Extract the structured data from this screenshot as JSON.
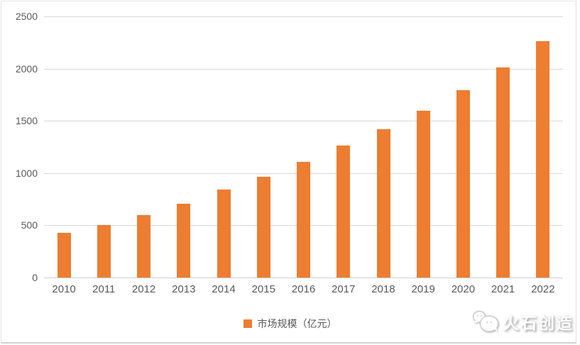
{
  "chart_data": {
    "type": "bar",
    "title": "",
    "categories": [
      "2010",
      "2011",
      "2012",
      "2013",
      "2014",
      "2015",
      "2016",
      "2017",
      "2018",
      "2019",
      "2020",
      "2021",
      "2022"
    ],
    "series": [
      {
        "name": "市场规模（亿元）",
        "color": "#ED7D31",
        "values": [
          430,
          500,
          600,
          710,
          845,
          965,
          1110,
          1265,
          1420,
          1600,
          1795,
          2010,
          2265
        ]
      }
    ],
    "xlabel": "",
    "ylabel": "",
    "ylim": [
      0,
      2500
    ],
    "yticks": [
      0,
      500,
      1000,
      1500,
      2000,
      2500
    ],
    "grid": true,
    "legend_position": "bottom-center",
    "legend_swatch": "square"
  },
  "branding": {
    "name": "火石创造",
    "icon": "huoshi-stones-icon"
  },
  "colors": {
    "bar": "#ED7D31",
    "gridline": "#D9D9D9",
    "axis_line": "#CFCFCF",
    "tick_text": "#595959",
    "frame_border": "#DEDEDE",
    "background": "#FFFFFF",
    "watermark_text": "#FFFFFF",
    "watermark_shadow": "#9E9E9E"
  }
}
